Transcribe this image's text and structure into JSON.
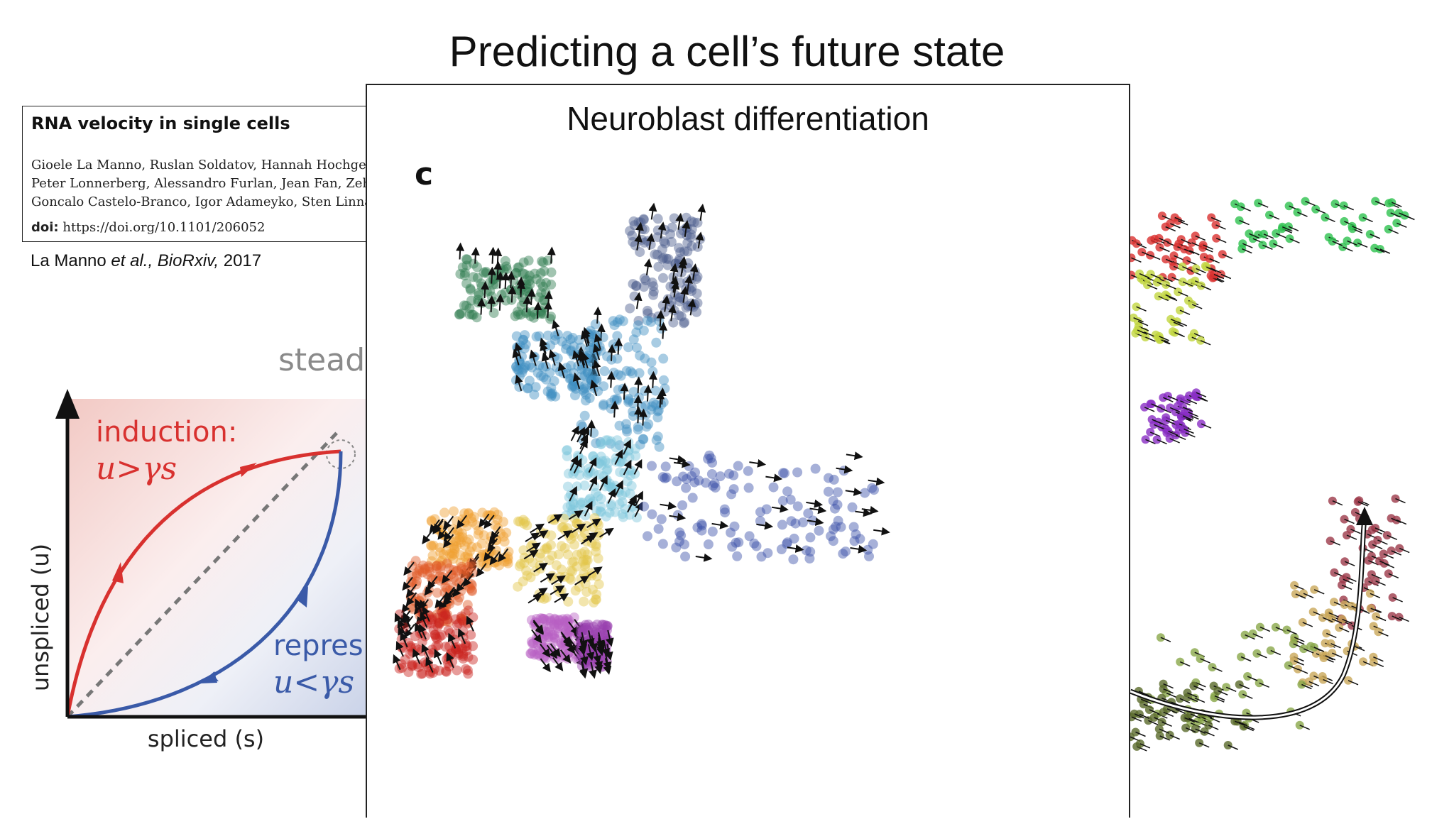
{
  "slide": {
    "title": "Predicting a cell’s future state"
  },
  "paper": {
    "title": "RNA velocity in single cells",
    "authors": [
      "Gioele La Manno, Ruslan Soldatov, Hannah Hochgerr",
      "Peter Lonnerberg, Alessandro Furlan, Jean Fan, Zehua",
      "Goncalo Castelo-Branco, Igor Adameyko, Sten Linnar"
    ],
    "doi_label": "doi:",
    "doi": "https://doi.org/10.1101/206052",
    "citation": {
      "authors": "La Manno",
      "etal": "et al.,",
      "journal": "BioRxiv,",
      "year": "2017"
    }
  },
  "phase_diagram": {
    "steady_label": "steady",
    "induction_label": "induction:",
    "induction_formula": "u>γs",
    "repression_label": "repres",
    "repression_formula": "u<γs",
    "y_axis_label": "unspliced (u)",
    "x_axis_label": "spliced (s)",
    "colors": {
      "induction": "#d8312f",
      "repression": "#3a5aa8",
      "diagonal": "#777777"
    }
  },
  "umap_panel": {
    "title": "Neuroblast differentiation",
    "panel_letter": "c",
    "cluster_colors": [
      "#2e7d4f",
      "#4a5a8c",
      "#3f8fc0",
      "#7cc6dc",
      "#3a4fa8",
      "#f0a030",
      "#e05a28",
      "#c9241f",
      "#e3c64a",
      "#b85fc4",
      "#9a40b0"
    ]
  },
  "right_panel": {
    "colors": [
      "#d9312f",
      "#2ec24f",
      "#c2d640",
      "#8a2ec4",
      "#9c3a4a",
      "#c9a85a",
      "#8aa84a",
      "#5a6a2a"
    ]
  }
}
